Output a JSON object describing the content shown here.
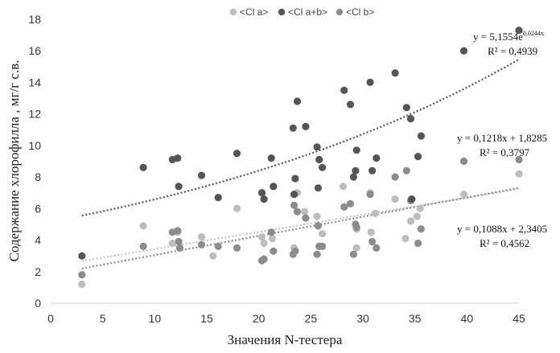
{
  "chart_data": {
    "type": "scatter",
    "xlabel": "Значения N-тестера",
    "ylabel": "Содержание хлорофилла , мг/г с.в.",
    "xlim": [
      0,
      45
    ],
    "ylim": [
      0,
      18
    ],
    "x_ticks": [
      0,
      5,
      10,
      15,
      20,
      25,
      30,
      35,
      40,
      45
    ],
    "y_ticks": [
      0,
      2,
      4,
      6,
      8,
      10,
      12,
      14,
      16,
      18
    ],
    "grid": false,
    "legend_position": "top",
    "series": [
      {
        "name": "<Cl a>",
        "color": "#bdbdbd",
        "trend": "linear",
        "slope": 0.1088,
        "intercept": 2.3405,
        "trend_color": "#c4c4c4",
        "equation": "y = 0,1088x + 2,3405",
        "r2": "R² = 0,4562",
        "points": [
          [
            3,
            1.2
          ],
          [
            8.9,
            4.9
          ],
          [
            11.7,
            3.8
          ],
          [
            12.2,
            4.5
          ],
          [
            14.5,
            4.2
          ],
          [
            15.6,
            3.0
          ],
          [
            17.9,
            6.0
          ],
          [
            20.3,
            4.2
          ],
          [
            20.5,
            3.8
          ],
          [
            21.3,
            4.1
          ],
          [
            23.4,
            3.5
          ],
          [
            23.7,
            7.0
          ],
          [
            24.4,
            5.8
          ],
          [
            25.6,
            5.5
          ],
          [
            25.8,
            3.6
          ],
          [
            26.1,
            4.4
          ],
          [
            28.1,
            7.4
          ],
          [
            29.4,
            4.7
          ],
          [
            29.4,
            3.5
          ],
          [
            30.7,
            7.0
          ],
          [
            30.8,
            4.5
          ],
          [
            31.2,
            5.7
          ],
          [
            33.1,
            6.6
          ],
          [
            34.1,
            4.1
          ],
          [
            34.6,
            5.2
          ],
          [
            35.2,
            5.5
          ],
          [
            35.5,
            6.0
          ],
          [
            39.7,
            6.9
          ],
          [
            45,
            8.2
          ]
        ]
      },
      {
        "name": "<Cl a+b>",
        "color": "#555555",
        "trend": "exponential",
        "a": 5.1554,
        "b": 0.0244,
        "trend_color": "#555555",
        "equation": "y = 5,1554e",
        "equation_exp": "0,0244x",
        "r2": "R² = 0,4939",
        "points": [
          [
            3,
            3.0
          ],
          [
            8.9,
            8.6
          ],
          [
            11.7,
            9.1
          ],
          [
            12.2,
            9.2
          ],
          [
            12.3,
            7.4
          ],
          [
            14.5,
            8.1
          ],
          [
            16.1,
            6.7
          ],
          [
            17.9,
            9.5
          ],
          [
            20.3,
            7.0
          ],
          [
            20.5,
            6.6
          ],
          [
            21.2,
            9.2
          ],
          [
            21.4,
            7.4
          ],
          [
            23.3,
            11.1
          ],
          [
            23.4,
            6.9
          ],
          [
            23.5,
            7.9
          ],
          [
            23.7,
            12.8
          ],
          [
            24.5,
            11.2
          ],
          [
            25.6,
            9.9
          ],
          [
            25.7,
            7.3
          ],
          [
            25.8,
            9.1
          ],
          [
            26.1,
            8.6
          ],
          [
            28.2,
            13.5
          ],
          [
            28.8,
            12.6
          ],
          [
            29.1,
            8.0
          ],
          [
            29.3,
            8.4
          ],
          [
            29.4,
            9.7
          ],
          [
            30.7,
            14.0
          ],
          [
            30.9,
            8.4
          ],
          [
            31.3,
            9.2
          ],
          [
            33.1,
            14.6
          ],
          [
            34.2,
            12.4
          ],
          [
            34.6,
            11.7
          ],
          [
            34.7,
            6.6
          ],
          [
            35.3,
            9.3
          ],
          [
            35.6,
            10.6
          ],
          [
            39.7,
            16.0
          ],
          [
            45,
            17.3
          ]
        ]
      },
      {
        "name": "<Cl b>",
        "color": "#8c8c8c",
        "trend": "linear",
        "slope": 0.1218,
        "intercept": 1.8285,
        "trend_color": "#8c8c8c",
        "equation": "y = 0,1218x + 1,8285",
        "r2": "R² = 0,3797",
        "points": [
          [
            3,
            1.8
          ],
          [
            8.9,
            3.6
          ],
          [
            11.7,
            4.5
          ],
          [
            12.2,
            4.6
          ],
          [
            12.3,
            3.9
          ],
          [
            12.4,
            3.5
          ],
          [
            14.5,
            3.7
          ],
          [
            16.1,
            3.6
          ],
          [
            17.9,
            3.5
          ],
          [
            20.3,
            2.7
          ],
          [
            20.5,
            2.8
          ],
          [
            21.2,
            4.5
          ],
          [
            21.4,
            3.3
          ],
          [
            23.3,
            3.1
          ],
          [
            23.4,
            6.2
          ],
          [
            23.5,
            3.3
          ],
          [
            23.7,
            5.8
          ],
          [
            24.5,
            5.4
          ],
          [
            25.6,
            3.1
          ],
          [
            25.7,
            4.9
          ],
          [
            25.8,
            3.6
          ],
          [
            26.1,
            3.6
          ],
          [
            28.2,
            6.1
          ],
          [
            28.8,
            6.3
          ],
          [
            29.1,
            3.1
          ],
          [
            29.3,
            5.0
          ],
          [
            29.4,
            4.8
          ],
          [
            30.7,
            6.9
          ],
          [
            30.9,
            3.9
          ],
          [
            31.3,
            3.5
          ],
          [
            33.1,
            8.0
          ],
          [
            34.2,
            8.4
          ],
          [
            34.6,
            6.5
          ],
          [
            35.3,
            3.8
          ],
          [
            35.6,
            4.7
          ],
          [
            39.7,
            9.0
          ],
          [
            45,
            9.1
          ]
        ]
      }
    ]
  }
}
